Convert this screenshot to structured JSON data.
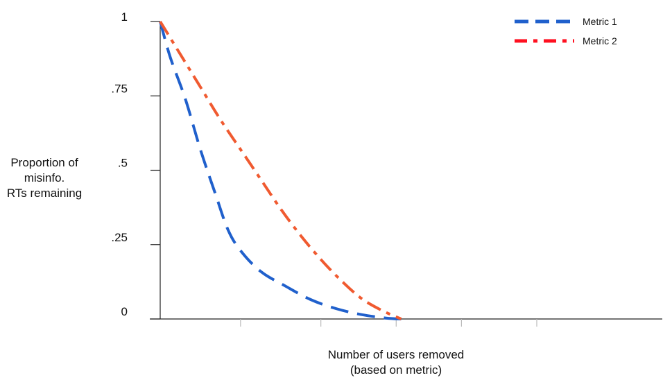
{
  "chart_data": {
    "type": "line",
    "title": "",
    "xlabel": [
      "Number of users removed",
      "(based on metric)"
    ],
    "ylabel": [
      "Proportion of",
      "misinfo.",
      "RTs remaining"
    ],
    "ylim": [
      0,
      1
    ],
    "xlim": [
      0,
      1
    ],
    "yticks": [
      {
        "value": 0,
        "label": "0"
      },
      {
        "value": 0.25,
        "label": ".25"
      },
      {
        "value": 0.5,
        "label": ".5"
      },
      {
        "value": 0.75,
        "label": ".75"
      },
      {
        "value": 1,
        "label": "1"
      }
    ],
    "xticks": [
      0.16,
      0.32,
      0.47,
      0.6,
      0.75
    ],
    "grid": false,
    "legend": "top-right",
    "series": [
      {
        "name": "Metric 1",
        "color": "#2060cc",
        "dash": "dashed",
        "x": [
          0,
          0.02,
          0.05,
          0.08,
          0.11,
          0.135,
          0.16,
          0.2,
          0.25,
          0.3,
          0.35,
          0.4,
          0.45,
          0.48
        ],
        "y": [
          1,
          0.88,
          0.74,
          0.57,
          0.42,
          0.3,
          0.23,
          0.16,
          0.11,
          0.065,
          0.035,
          0.015,
          0.003,
          0
        ]
      },
      {
        "name": "Metric 2",
        "color": "#f05a30",
        "dash": "dash-dot",
        "x": [
          0,
          0.04,
          0.08,
          0.12,
          0.16,
          0.2,
          0.24,
          0.28,
          0.32,
          0.36,
          0.4,
          0.44,
          0.48
        ],
        "y": [
          1,
          0.89,
          0.78,
          0.67,
          0.57,
          0.47,
          0.37,
          0.28,
          0.2,
          0.13,
          0.07,
          0.03,
          0
        ]
      }
    ],
    "legend_entries": [
      {
        "name": "Metric 1",
        "color": "#2060cc",
        "dash": "dashed"
      },
      {
        "name": "Metric 2",
        "color": "#ff1020",
        "dash": "dash-dot"
      }
    ]
  }
}
